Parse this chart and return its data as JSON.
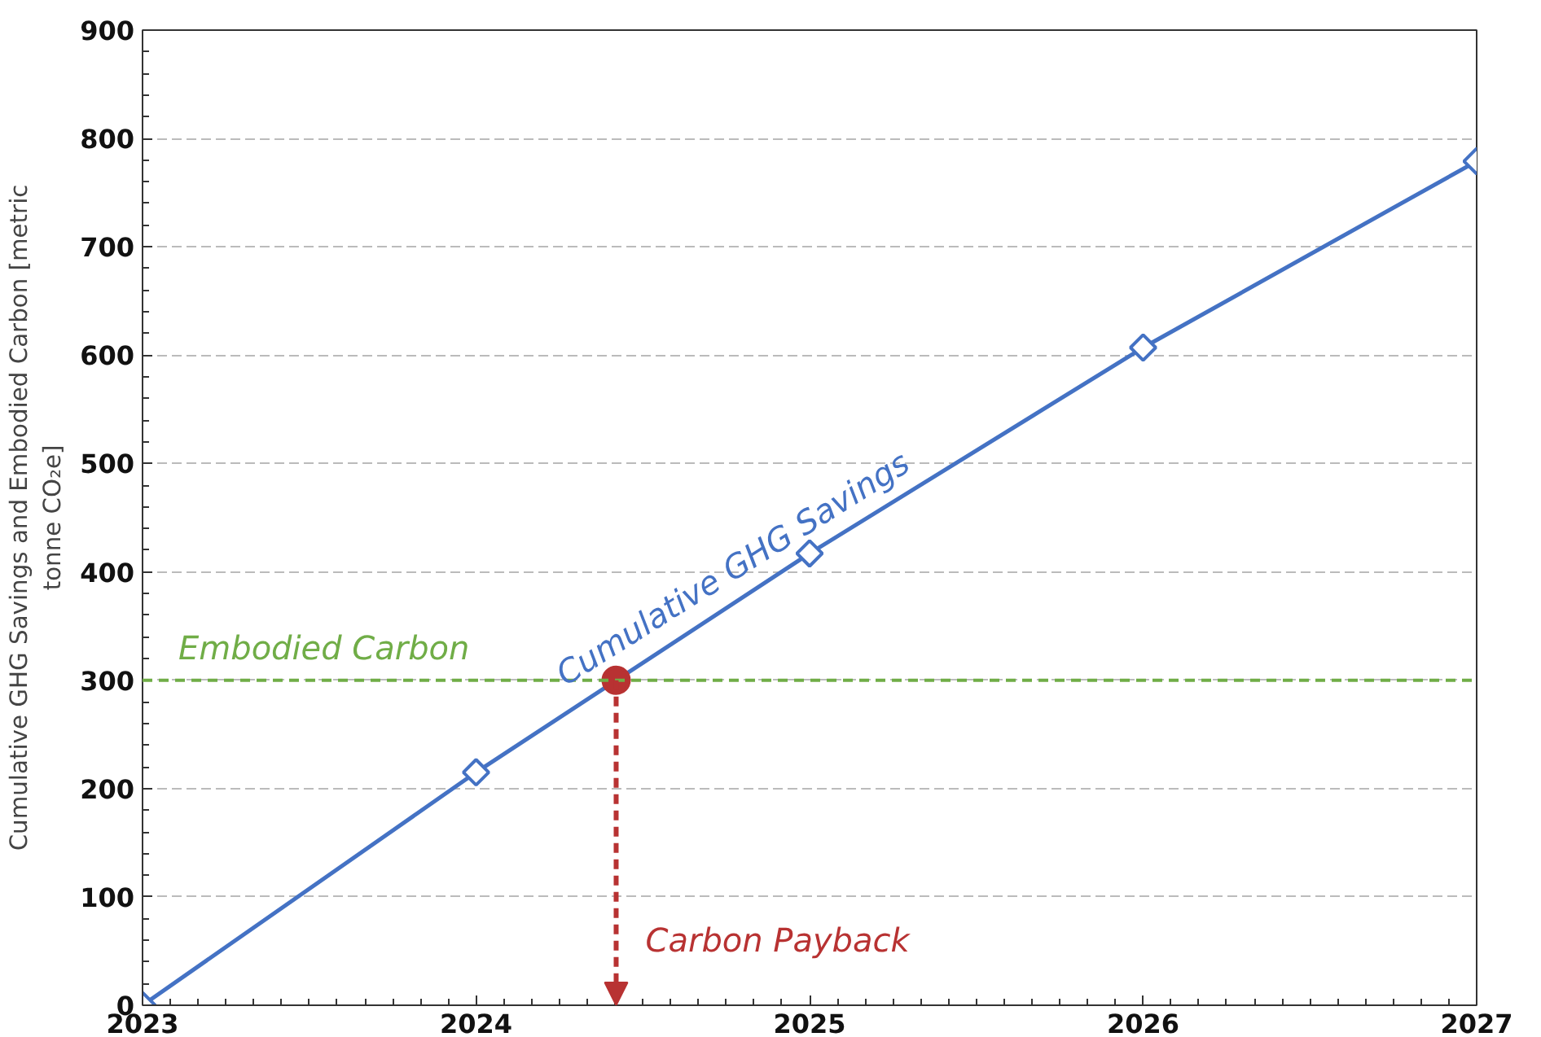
{
  "chart_data": {
    "type": "line",
    "x": [
      2023,
      2024,
      2025,
      2026,
      2027
    ],
    "series": [
      {
        "name": "Cumulative GHG Savings",
        "color": "#4472c4",
        "values": [
          0,
          215,
          417,
          607,
          779
        ],
        "marker": "diamond"
      },
      {
        "type": "scatter",
        "color": "#b83232",
        "x": [
          2024.42
        ],
        "values": [
          300
        ],
        "marker": "circle"
      }
    ],
    "ylabel": "Cumulative GHG Savings and Embodied Carbon [metric\ntonne CO₂e]",
    "xlim": [
      2023,
      2027
    ],
    "xticks": [
      2023,
      2024,
      2025,
      2026,
      2027
    ],
    "ylim": [
      0,
      900
    ],
    "yticks": [
      0,
      100,
      200,
      300,
      400,
      500,
      600,
      700,
      800,
      900
    ],
    "grid": "y",
    "ref_lines": [
      {
        "axis": "y",
        "value": 300,
        "label": "Embodied Carbon",
        "color": "#70ad47",
        "line_style": "dashed"
      }
    ],
    "annotations": [
      "Carbon Payback"
    ]
  }
}
